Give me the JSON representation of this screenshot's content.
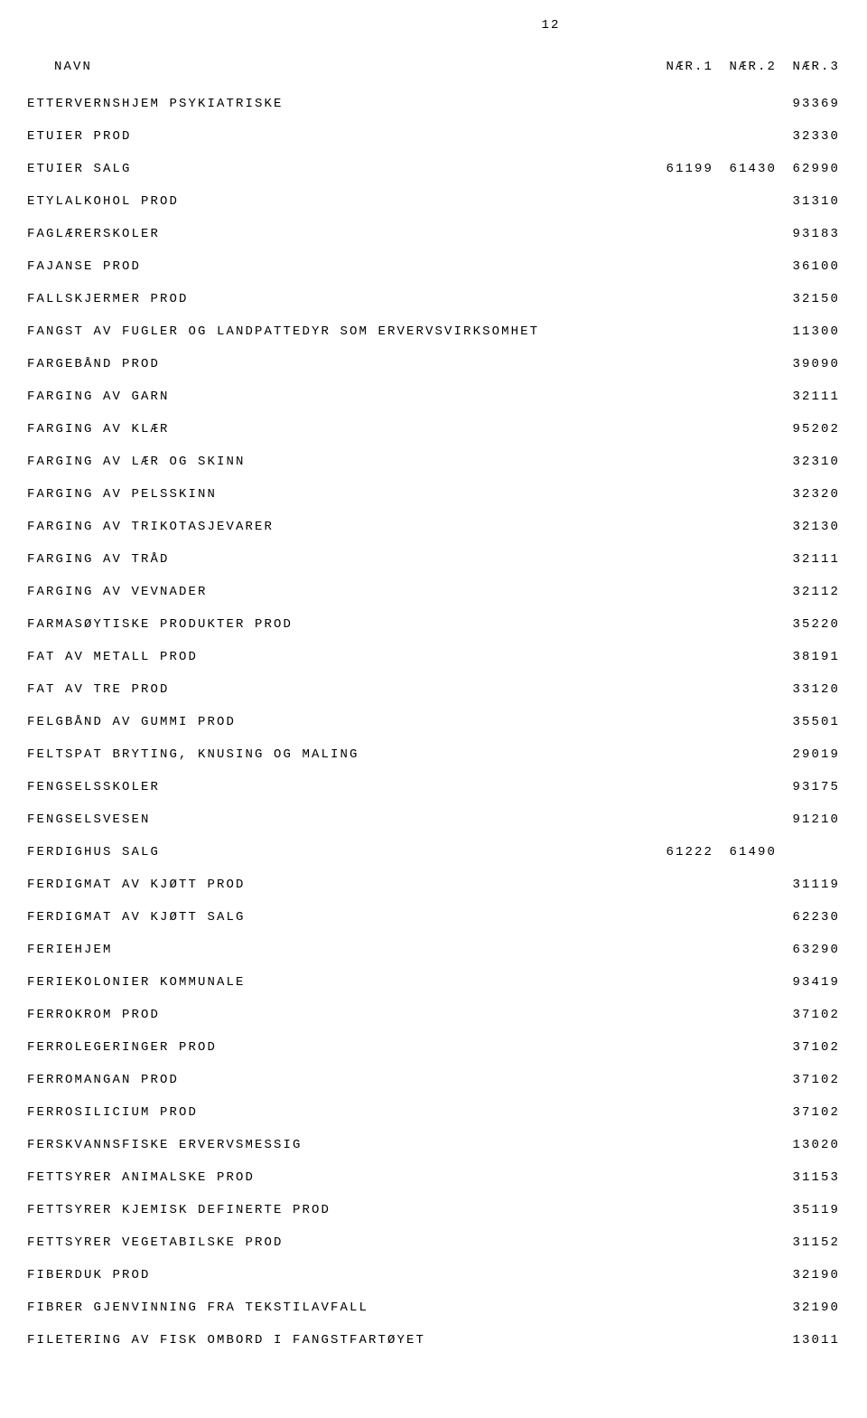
{
  "page_number": "12",
  "header": {
    "navn": "NAVN",
    "col1": "NÆR.1",
    "col2": "NÆR.2",
    "col3": "NÆR.3"
  },
  "rows": [
    {
      "name": "ETTERVERNSHJEM PSYKIATRISKE",
      "c1": "",
      "c2": "",
      "c3": "93369"
    },
    {
      "name": "ETUIER PROD",
      "c1": "",
      "c2": "",
      "c3": "32330"
    },
    {
      "name": "ETUIER SALG",
      "c1": "61199",
      "c2": "61430",
      "c3": "62990"
    },
    {
      "name": "ETYLALKOHOL PROD",
      "c1": "",
      "c2": "",
      "c3": "31310"
    },
    {
      "name": "FAGLÆRERSKOLER",
      "c1": "",
      "c2": "",
      "c3": "93183"
    },
    {
      "name": "FAJANSE PROD",
      "c1": "",
      "c2": "",
      "c3": "36100"
    },
    {
      "name": "FALLSKJERMER PROD",
      "c1": "",
      "c2": "",
      "c3": "32150"
    },
    {
      "name": "FANGST AV FUGLER OG LANDPATTEDYR SOM ERVERVSVIRKSOMHET",
      "c1": "",
      "c2": "",
      "c3": "11300"
    },
    {
      "name": "FARGEBÅND PROD",
      "c1": "",
      "c2": "",
      "c3": "39090"
    },
    {
      "name": "FARGING AV GARN",
      "c1": "",
      "c2": "",
      "c3": "32111"
    },
    {
      "name": "FARGING AV KLÆR",
      "c1": "",
      "c2": "",
      "c3": "95202"
    },
    {
      "name": "FARGING AV LÆR OG SKINN",
      "c1": "",
      "c2": "",
      "c3": "32310"
    },
    {
      "name": "FARGING AV PELSSKINN",
      "c1": "",
      "c2": "",
      "c3": "32320"
    },
    {
      "name": "FARGING AV TRIKOTASJEVARER",
      "c1": "",
      "c2": "",
      "c3": "32130"
    },
    {
      "name": "FARGING AV TRÅD",
      "c1": "",
      "c2": "",
      "c3": "32111"
    },
    {
      "name": "FARGING AV VEVNADER",
      "c1": "",
      "c2": "",
      "c3": "32112"
    },
    {
      "name": "FARMASØYTISKE PRODUKTER PROD",
      "c1": "",
      "c2": "",
      "c3": "35220"
    },
    {
      "name": "FAT AV METALL PROD",
      "c1": "",
      "c2": "",
      "c3": "38191"
    },
    {
      "name": "FAT AV TRE PROD",
      "c1": "",
      "c2": "",
      "c3": "33120"
    },
    {
      "name": "FELGBÅND AV GUMMI PROD",
      "c1": "",
      "c2": "",
      "c3": "35501"
    },
    {
      "name": "FELTSPAT BRYTING, KNUSING OG MALING",
      "c1": "",
      "c2": "",
      "c3": "29019"
    },
    {
      "name": "FENGSELSSKOLER",
      "c1": "",
      "c2": "",
      "c3": "93175"
    },
    {
      "name": "FENGSELSVESEN",
      "c1": "",
      "c2": "",
      "c3": "91210"
    },
    {
      "name": "FERDIGHUS SALG",
      "c1": "61222",
      "c2": "61490",
      "c3": ""
    },
    {
      "name": "FERDIGMAT AV KJØTT PROD",
      "c1": "",
      "c2": "",
      "c3": "31119"
    },
    {
      "name": "FERDIGMAT AV KJØTT SALG",
      "c1": "",
      "c2": "",
      "c3": "62230"
    },
    {
      "name": "FERIEHJEM",
      "c1": "",
      "c2": "",
      "c3": "63290"
    },
    {
      "name": "FERIEKOLONIER KOMMUNALE",
      "c1": "",
      "c2": "",
      "c3": "93419"
    },
    {
      "name": "FERROKROM PROD",
      "c1": "",
      "c2": "",
      "c3": "37102"
    },
    {
      "name": "FERROLEGERINGER PROD",
      "c1": "",
      "c2": "",
      "c3": "37102"
    },
    {
      "name": "FERROMANGAN PROD",
      "c1": "",
      "c2": "",
      "c3": "37102"
    },
    {
      "name": "FERROSILICIUM PROD",
      "c1": "",
      "c2": "",
      "c3": "37102"
    },
    {
      "name": "FERSKVANNSFISKE ERVERVSMESSIG",
      "c1": "",
      "c2": "",
      "c3": "13020"
    },
    {
      "name": "FETTSYRER ANIMALSKE PROD",
      "c1": "",
      "c2": "",
      "c3": "31153"
    },
    {
      "name": "FETTSYRER KJEMISK DEFINERTE PROD",
      "c1": "",
      "c2": "",
      "c3": "35119"
    },
    {
      "name": "FETTSYRER VEGETABILSKE PROD",
      "c1": "",
      "c2": "",
      "c3": "31152"
    },
    {
      "name": "FIBERDUK PROD",
      "c1": "",
      "c2": "",
      "c3": "32190"
    },
    {
      "name": "FIBRER GJENVINNING FRA TEKSTILAVFALL",
      "c1": "",
      "c2": "",
      "c3": "32190"
    },
    {
      "name": "FILETERING AV FISK OMBORD I FANGSTFARTØYET",
      "c1": "",
      "c2": "",
      "c3": "13011"
    }
  ]
}
